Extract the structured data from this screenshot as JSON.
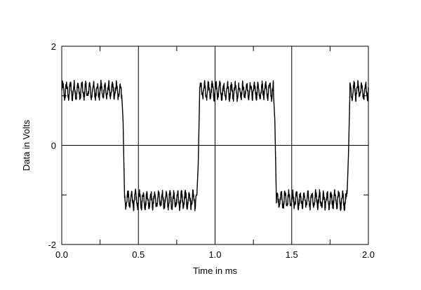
{
  "chart_data": {
    "type": "line",
    "title": "",
    "xlabel": "Time in ms",
    "ylabel": "Data in Volts",
    "xlim": [
      0.0,
      2.0
    ],
    "ylim": [
      -2,
      2
    ],
    "x_ticks": [
      0.0,
      0.5,
      1.0,
      1.5,
      2.0
    ],
    "x_tick_labels": [
      "0.0",
      "0.5",
      "1.0",
      "1.5",
      "2.0"
    ],
    "y_ticks": [
      -2,
      0,
      2
    ],
    "y_tick_labels": [
      "-2",
      "0",
      "2"
    ],
    "grid": true,
    "series": [
      {
        "color": "#000000",
        "x": [
          0.0,
          0.39,
          0.4,
          0.41,
          0.88,
          0.89,
          0.9,
          1.38,
          1.39,
          1.4,
          1.86,
          1.87,
          1.88,
          2.0
        ],
        "y": [
          1.1,
          1.1,
          0.5,
          -1.1,
          -1.1,
          -0.4,
          1.1,
          1.1,
          0.5,
          -1.1,
          -1.1,
          -0.2,
          1.1,
          1.1
        ]
      }
    ]
  }
}
